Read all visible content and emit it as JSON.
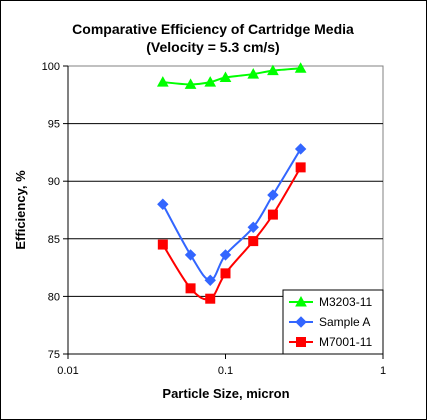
{
  "chart_data": {
    "type": "line",
    "title": "Comparative Efficiency of Cartridge Media",
    "subtitle": "(Velocity = 5.3 cm/s)",
    "xlabel": "Particle Size, micron",
    "ylabel": "Efficiency, %",
    "x_scale": "log",
    "xlim": [
      0.01,
      1
    ],
    "ylim": [
      75,
      100
    ],
    "x_ticks": [
      0.01,
      0.1,
      1
    ],
    "x_tick_labels": [
      "0.01",
      "0.1",
      "1"
    ],
    "y_ticks": [
      75,
      80,
      85,
      90,
      95,
      100
    ],
    "y_tick_labels": [
      "75",
      "80",
      "85",
      "90",
      "95",
      "100"
    ],
    "grid": "horizontal major gridlines",
    "legend_position": "bottom-right",
    "series": [
      {
        "name": "M3203-11",
        "color": "#00ff00",
        "marker": "triangle",
        "x": [
          0.04,
          0.06,
          0.08,
          0.1,
          0.15,
          0.2,
          0.3
        ],
        "y": [
          98.6,
          98.4,
          98.6,
          99.0,
          99.3,
          99.6,
          99.8
        ]
      },
      {
        "name": "Sample A",
        "color": "#3366ff",
        "marker": "diamond",
        "x": [
          0.04,
          0.06,
          0.08,
          0.1,
          0.15,
          0.2,
          0.3
        ],
        "y": [
          88.0,
          83.6,
          81.4,
          83.6,
          86.0,
          88.8,
          92.8
        ]
      },
      {
        "name": "M7001-11",
        "color": "#ff0000",
        "marker": "square",
        "x": [
          0.04,
          0.06,
          0.08,
          0.1,
          0.15,
          0.2,
          0.3
        ],
        "y": [
          84.5,
          80.7,
          79.8,
          82.0,
          84.8,
          87.1,
          91.2
        ]
      }
    ]
  }
}
